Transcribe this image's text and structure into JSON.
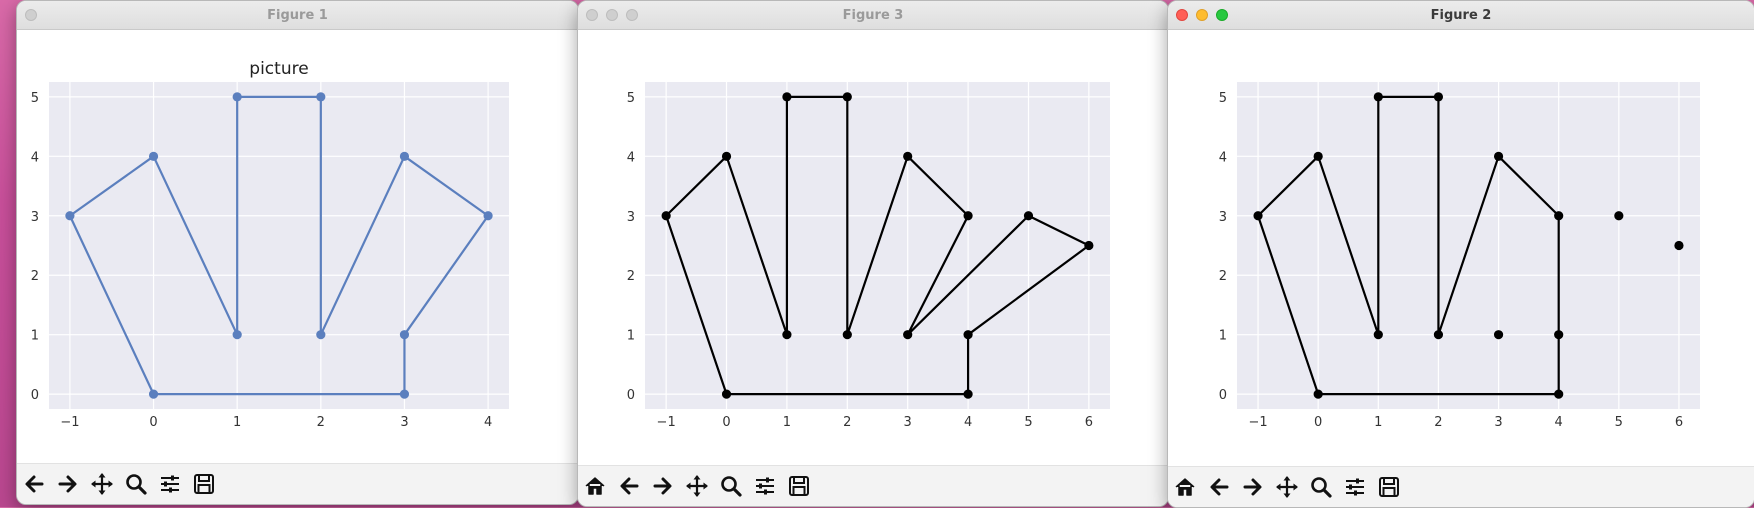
{
  "windows": [
    {
      "id": "fig1",
      "title": "Figure 1",
      "active": false,
      "toolbar": [
        "back-arrow-icon",
        "forward-arrow-icon",
        "pan-icon",
        "zoom-icon",
        "configure-subplots-icon",
        "save-icon"
      ],
      "chart_data": {
        "type": "line",
        "title": "picture",
        "color": "#5b7fbe",
        "style": "seaborn",
        "x": [
          -1,
          0,
          1,
          1,
          2,
          2,
          3,
          4,
          3,
          3,
          0,
          -1
        ],
        "y": [
          3,
          4,
          1,
          5,
          5,
          1,
          4,
          3,
          1,
          0,
          0,
          3
        ],
        "xticks": [
          -1,
          0,
          1,
          2,
          3,
          4
        ],
        "yticks": [
          0,
          1,
          2,
          3,
          4,
          5
        ],
        "xlim": [
          -1.25,
          4.25
        ],
        "ylim": [
          -0.25,
          5.25
        ],
        "grid": true
      }
    },
    {
      "id": "fig3",
      "title": "Figure 3",
      "active": false,
      "toolbar": [
        "home-icon",
        "back-arrow-icon",
        "forward-arrow-icon",
        "pan-icon",
        "zoom-icon",
        "configure-subplots-icon",
        "save-icon"
      ],
      "chart_data": {
        "type": "line",
        "title": "",
        "color": "#000000",
        "style": "seaborn",
        "x": [
          -1,
          0,
          1,
          1,
          2,
          2,
          3,
          4,
          3,
          5,
          6,
          4,
          4,
          0,
          -1
        ],
        "y": [
          3,
          4,
          1,
          5,
          5,
          1,
          4,
          3,
          1,
          3,
          2.5,
          1,
          0,
          0,
          3
        ],
        "xticks": [
          -1,
          0,
          1,
          2,
          3,
          4,
          5,
          6
        ],
        "yticks": [
          0,
          1,
          2,
          3,
          4,
          5
        ],
        "xlim": [
          -1.35,
          6.35
        ],
        "ylim": [
          -0.25,
          5.25
        ],
        "grid": true
      }
    },
    {
      "id": "fig2",
      "title": "Figure 2",
      "active": true,
      "toolbar": [
        "home-icon",
        "back-arrow-icon",
        "forward-arrow-icon",
        "pan-icon",
        "zoom-icon",
        "configure-subplots-icon",
        "save-icon"
      ],
      "chart_data": {
        "type": "line",
        "title": "",
        "color": "#000000",
        "style": "seaborn",
        "x": [
          -1,
          0,
          1,
          1,
          2,
          2,
          3,
          4,
          4,
          4,
          0,
          -1
        ],
        "y": [
          3,
          4,
          1,
          5,
          5,
          1,
          4,
          3,
          1,
          0,
          0,
          3
        ],
        "extra_points": [
          [
            3,
            1
          ],
          [
            5,
            3
          ],
          [
            6,
            2.5
          ]
        ],
        "xticks": [
          -1,
          0,
          1,
          2,
          3,
          4,
          5,
          6
        ],
        "yticks": [
          0,
          1,
          2,
          3,
          4,
          5
        ],
        "xlim": [
          -1.35,
          6.35
        ],
        "ylim": [
          -0.25,
          5.25
        ],
        "grid": true
      }
    }
  ]
}
